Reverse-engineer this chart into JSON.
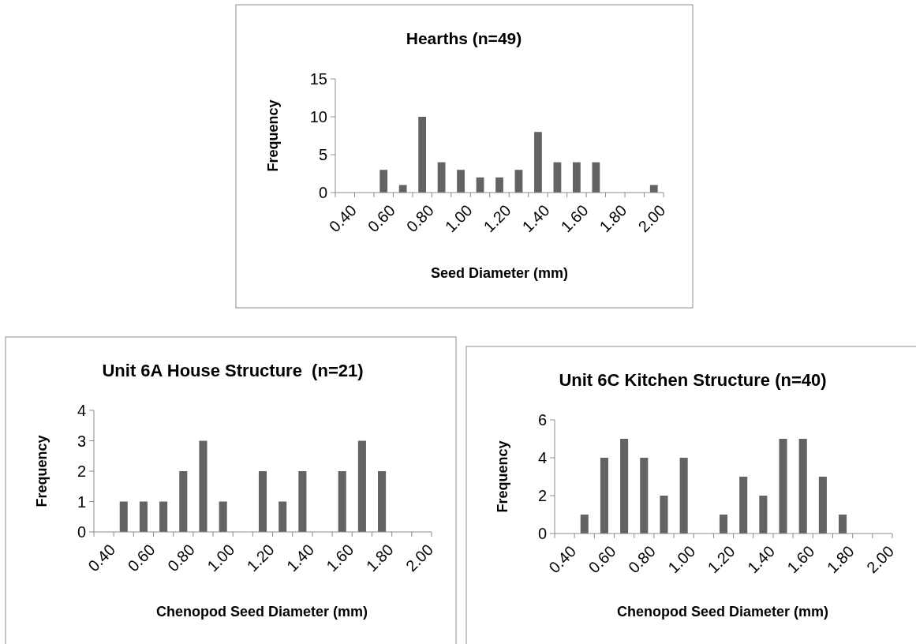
{
  "chart_data": [
    {
      "type": "bar",
      "title": "Hearths (n=49)",
      "xlabel": "Seed Diameter (mm)",
      "ylabel": "Frequency",
      "categories": [
        "0.40",
        null,
        "0.60",
        null,
        "0.80",
        null,
        "1.00",
        null,
        "1.20",
        null,
        "1.40",
        null,
        "1.60",
        null,
        "1.80",
        null,
        "2.00"
      ],
      "values": [
        0,
        0,
        3,
        1,
        10,
        4,
        3,
        2,
        2,
        3,
        8,
        4,
        4,
        4,
        0,
        0,
        1
      ],
      "color": "#636363",
      "ylim": [
        0,
        15
      ],
      "yticks": [
        0,
        5,
        10,
        15
      ]
    },
    {
      "type": "bar",
      "title": "Unit 6A House Structure  (n=21)",
      "xlabel": "Chenopod Seed Diameter (mm)",
      "ylabel": "Frequency",
      "categories": [
        "0.40",
        null,
        "0.60",
        null,
        "0.80",
        null,
        "1.00",
        null,
        "1.20",
        null,
        "1.40",
        null,
        "1.60",
        null,
        "1.80",
        null,
        "2.00"
      ],
      "values": [
        0,
        1,
        1,
        1,
        2,
        3,
        1,
        0,
        2,
        1,
        2,
        0,
        2,
        3,
        2,
        0,
        0
      ],
      "color": "#636363",
      "ylim": [
        0,
        4
      ],
      "yticks": [
        0,
        1,
        2,
        3,
        4
      ]
    },
    {
      "type": "bar",
      "title": "Unit 6C Kitchen Structure (n=40)",
      "xlabel": "Chenopod Seed Diameter (mm)",
      "ylabel": "Frequency",
      "categories": [
        "0.40",
        null,
        "0.60",
        null,
        "0.80",
        null,
        "1.00",
        null,
        "1.20",
        null,
        "1.40",
        null,
        "1.60",
        null,
        "1.80",
        null,
        "2.00"
      ],
      "values": [
        0,
        1,
        4,
        5,
        4,
        2,
        4,
        0,
        1,
        3,
        2,
        5,
        5,
        3,
        1,
        0,
        0
      ],
      "color": "#636363",
      "ylim": [
        0,
        6
      ],
      "yticks": [
        0,
        2,
        4,
        6
      ]
    }
  ]
}
